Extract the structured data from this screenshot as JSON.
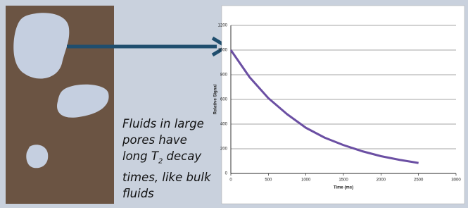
{
  "caption": [
    "Fluids in large pores have long T",
    "2",
    " decay times, like bulk fluids"
  ],
  "chart_data": {
    "type": "line",
    "x_label": "Time (ms)",
    "y_label": "Relative Signal",
    "x": [
      0,
      250,
      500,
      750,
      1000,
      1250,
      1500,
      1750,
      2000,
      2250,
      2500
    ],
    "series": [
      {
        "color": "#6b4fa3",
        "values": [
          1000,
          780,
          610,
          480,
          370,
          290,
          230,
          180,
          140,
          110,
          85
        ]
      }
    ],
    "xlim": [
      0,
      3000
    ],
    "xticks": [
      0,
      500,
      1000,
      1500,
      2000,
      2500,
      3000
    ],
    "ylim": [
      0,
      1200
    ],
    "yticks": [
      0,
      200,
      400,
      600,
      800,
      1000,
      1200
    ],
    "grid": true
  }
}
